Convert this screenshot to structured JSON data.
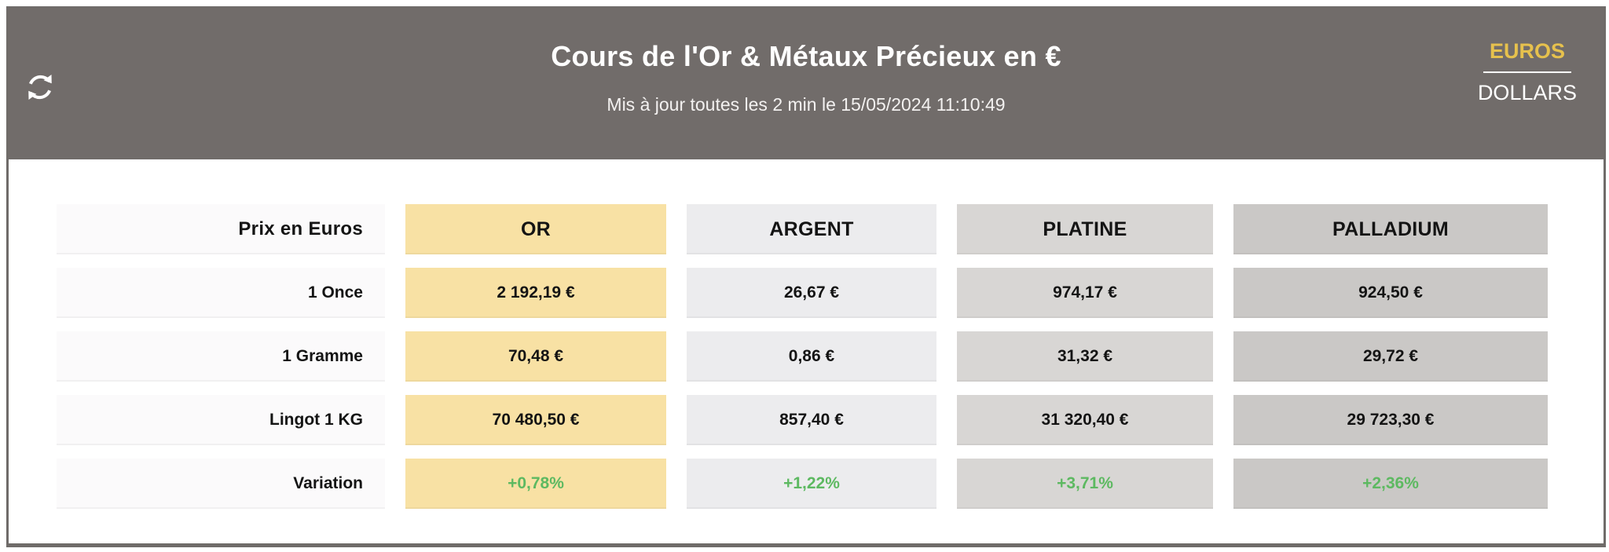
{
  "header": {
    "title": "Cours de l'Or & Métaux Précieux en €",
    "subtitle": "Mis à jour toutes les 2 min le 15/05/2024 11:10:49",
    "icons": {
      "refresh": "circular-sync-arrows"
    },
    "currency": {
      "euros_label": "EUROS",
      "dollars_label": "DOLLARS",
      "selected": "EUROS",
      "selected_color": "#e6c14d",
      "unselected_color": "#ffffff"
    },
    "background_color": "#716c6a"
  },
  "table": {
    "corner_label": "Prix en Euros",
    "corner_bg": "#fbfafb",
    "label_bg": "#fbfafb",
    "variation_color": "#5db961",
    "columns": [
      {
        "id": "or",
        "label": "OR",
        "color": "#f8e1a4"
      },
      {
        "id": "argent",
        "label": "ARGENT",
        "color": "#ececee"
      },
      {
        "id": "platine",
        "label": "PLATINE",
        "color": "#d8d6d4"
      },
      {
        "id": "palladium",
        "label": "PALLADIUM",
        "color": "#cac8c6"
      }
    ],
    "rows": [
      {
        "label": "1 Once",
        "variation": false,
        "values": [
          "2 192,19 €",
          "26,67 €",
          "974,17 €",
          "924,50 €"
        ]
      },
      {
        "label": "1 Gramme",
        "variation": false,
        "values": [
          "70,48 €",
          "0,86 €",
          "31,32 €",
          "29,72 €"
        ]
      },
      {
        "label": "Lingot 1 KG",
        "variation": false,
        "values": [
          "70 480,50 €",
          "857,40 €",
          "31 320,40 €",
          "29 723,30 €"
        ]
      },
      {
        "label": "Variation",
        "variation": true,
        "values": [
          "+0,78%",
          "+1,22%",
          "+3,71%",
          "+2,36%"
        ]
      }
    ]
  }
}
